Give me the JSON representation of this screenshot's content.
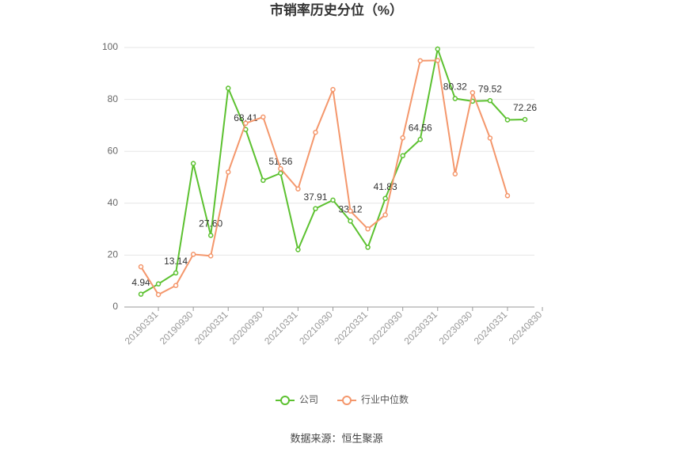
{
  "chart_data": {
    "type": "line",
    "title": "市销率历史分位（%）",
    "source": "数据来源：恒生聚源",
    "categories": [
      "20190331",
      null,
      "20190930",
      null,
      "20200331",
      null,
      "20200930",
      null,
      "20210331",
      null,
      "20210930",
      null,
      "20220331",
      null,
      "20220930",
      null,
      "20230331",
      null,
      "20230930",
      null,
      "20240331",
      null,
      "20240830"
    ],
    "series": [
      {
        "name": "公司",
        "color": "#5cc130",
        "values": [
          4.94,
          8.9,
          13.14,
          55.3,
          27.6,
          84.3,
          68.41,
          48.8,
          51.56,
          22.1,
          37.91,
          41.2,
          33.12,
          23.0,
          41.83,
          58.3,
          64.56,
          99.4,
          80.32,
          79.3,
          79.52,
          72.1,
          72.26
        ],
        "value_labels": [
          "4.94",
          null,
          "13.14",
          null,
          "27.60",
          null,
          "68.41",
          null,
          "51.56",
          null,
          "37.91",
          null,
          "33.12",
          null,
          "41.83",
          null,
          "64.56",
          null,
          "80.32",
          null,
          "79.52",
          null,
          "72.26"
        ]
      },
      {
        "name": "行业中位数",
        "color": "#f4976c",
        "values": [
          15.5,
          4.8,
          8.3,
          20.3,
          19.7,
          52.0,
          70.8,
          73.2,
          53.3,
          45.5,
          67.3,
          83.8,
          37.0,
          30.1,
          35.5,
          65.2,
          94.9,
          95.0,
          51.3,
          82.6,
          65.1,
          42.9,
          null
        ]
      }
    ],
    "ylim": [
      0,
      100
    ],
    "yticks": [
      0,
      20,
      40,
      60,
      80,
      100
    ],
    "grid": true,
    "legend": "bottom"
  }
}
